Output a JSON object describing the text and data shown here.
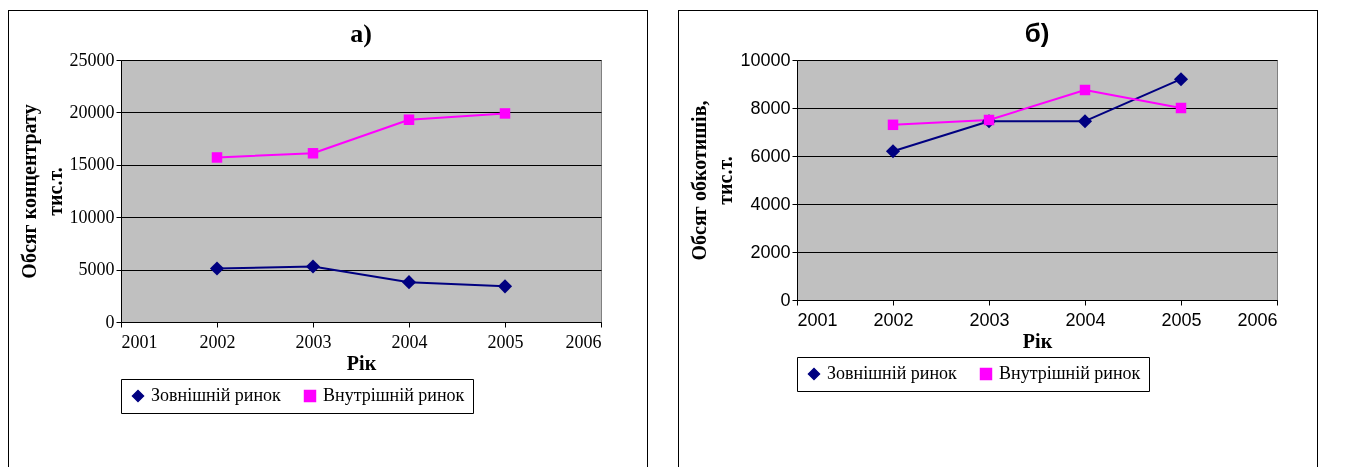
{
  "chart_data": [
    {
      "type": "line",
      "title": "а)",
      "xlabel": "Рік",
      "ylabel": "Обсяг концентрату\nтис.т.",
      "x": [
        2002,
        2003,
        2004,
        2005
      ],
      "xlim": [
        2001,
        2006
      ],
      "xticks": [
        2001,
        2002,
        2003,
        2004,
        2005,
        2006
      ],
      "ylim": [
        0,
        25000
      ],
      "yticks": [
        0,
        5000,
        10000,
        15000,
        20000,
        25000
      ],
      "grid": "y",
      "legend": "bottom",
      "series": [
        {
          "name": "Зовнішній ринок",
          "color": "#000080",
          "marker": "diamond",
          "values": [
            5100,
            5300,
            3800,
            3400
          ]
        },
        {
          "name": "Внутрішній ринок",
          "color": "#ff00ff",
          "marker": "square",
          "values": [
            15700,
            16100,
            19300,
            19900
          ]
        }
      ]
    },
    {
      "type": "line",
      "title": "б)",
      "xlabel": "Рік",
      "ylabel": "Обсяг обкотишів,\nтис.т.",
      "x": [
        2002,
        2003,
        2004,
        2005
      ],
      "xlim": [
        2001,
        2006
      ],
      "xticks": [
        2001,
        2002,
        2003,
        2004,
        2005,
        2006
      ],
      "ylim": [
        0,
        10000
      ],
      "yticks": [
        0,
        2000,
        4000,
        6000,
        8000,
        10000
      ],
      "grid": "y",
      "legend": "bottom",
      "series": [
        {
          "name": "Зовнішній ринок",
          "color": "#000080",
          "marker": "diamond",
          "values": [
            6200,
            7450,
            7450,
            9200
          ]
        },
        {
          "name": "Внутрішній ринок",
          "color": "#ff00ff",
          "marker": "square",
          "values": [
            7300,
            7500,
            8750,
            8000
          ]
        }
      ]
    }
  ]
}
